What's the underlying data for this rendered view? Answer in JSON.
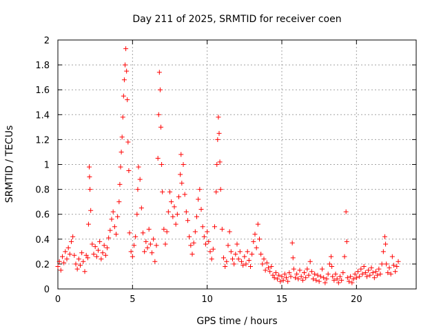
{
  "chart_data": {
    "type": "scatter",
    "title": "Day 211 of 2025, SRMTID for receiver coen",
    "xlabel": "GPS time / hours",
    "ylabel": "SRMTID / TECUs",
    "xlim": [
      0,
      24
    ],
    "ylim": [
      0,
      2
    ],
    "xticks": [
      0,
      5,
      10,
      15,
      20
    ],
    "xtick_labels": [
      "0",
      "5",
      "10",
      "15",
      "20"
    ],
    "yticks": [
      0,
      0.2,
      0.4,
      0.6,
      0.8,
      1,
      1.2,
      1.4,
      1.6,
      1.8,
      2
    ],
    "ytick_labels": [
      "0",
      "0.2",
      "0.4",
      "0.6",
      "0.8",
      "1",
      "1.2",
      "1.4",
      "1.6",
      "1.8",
      "2"
    ],
    "grid": true,
    "marker": "+",
    "color": "#ff0000",
    "series": [
      {
        "name": "SRMTID",
        "points": [
          [
            0.0,
            0.18
          ],
          [
            0.1,
            0.22
          ],
          [
            0.2,
            0.15
          ],
          [
            0.3,
            0.26
          ],
          [
            0.4,
            0.21
          ],
          [
            0.5,
            0.3
          ],
          [
            0.6,
            0.24
          ],
          [
            0.7,
            0.33
          ],
          [
            0.8,
            0.28
          ],
          [
            0.9,
            0.38
          ],
          [
            1.0,
            0.42
          ],
          [
            1.1,
            0.27
          ],
          [
            1.2,
            0.2
          ],
          [
            1.3,
            0.16
          ],
          [
            1.4,
            0.24
          ],
          [
            1.5,
            0.19
          ],
          [
            1.6,
            0.29
          ],
          [
            1.7,
            0.22
          ],
          [
            1.8,
            0.14
          ],
          [
            1.9,
            0.27
          ],
          [
            2.0,
            0.25
          ],
          [
            2.05,
            0.52
          ],
          [
            2.1,
            0.98
          ],
          [
            2.12,
            0.9
          ],
          [
            2.15,
            0.8
          ],
          [
            2.2,
            0.63
          ],
          [
            2.3,
            0.36
          ],
          [
            2.4,
            0.28
          ],
          [
            2.5,
            0.34
          ],
          [
            2.6,
            0.26
          ],
          [
            2.7,
            0.31
          ],
          [
            2.8,
            0.38
          ],
          [
            2.9,
            0.24
          ],
          [
            3.0,
            0.29
          ],
          [
            3.1,
            0.35
          ],
          [
            3.2,
            0.27
          ],
          [
            3.3,
            0.33
          ],
          [
            3.4,
            0.41
          ],
          [
            3.5,
            0.47
          ],
          [
            3.6,
            0.56
          ],
          [
            3.7,
            0.62
          ],
          [
            3.8,
            0.5
          ],
          [
            3.9,
            0.44
          ],
          [
            4.0,
            0.58
          ],
          [
            4.1,
            0.7
          ],
          [
            4.15,
            0.84
          ],
          [
            4.2,
            0.98
          ],
          [
            4.25,
            1.1
          ],
          [
            4.3,
            1.22
          ],
          [
            4.35,
            1.38
          ],
          [
            4.4,
            1.55
          ],
          [
            4.45,
            1.68
          ],
          [
            4.5,
            1.8
          ],
          [
            4.55,
            1.93
          ],
          [
            4.6,
            1.75
          ],
          [
            4.65,
            1.52
          ],
          [
            4.7,
            1.18
          ],
          [
            4.75,
            0.95
          ],
          [
            4.8,
            0.45
          ],
          [
            4.9,
            0.3
          ],
          [
            5.0,
            0.26
          ],
          [
            5.1,
            0.35
          ],
          [
            5.2,
            0.42
          ],
          [
            5.3,
            0.6
          ],
          [
            5.35,
            0.8
          ],
          [
            5.4,
            0.98
          ],
          [
            5.5,
            0.88
          ],
          [
            5.6,
            0.65
          ],
          [
            5.7,
            0.45
          ],
          [
            5.8,
            0.3
          ],
          [
            5.9,
            0.38
          ],
          [
            6.0,
            0.33
          ],
          [
            6.1,
            0.48
          ],
          [
            6.2,
            0.36
          ],
          [
            6.3,
            0.29
          ],
          [
            6.4,
            0.4
          ],
          [
            6.5,
            0.22
          ],
          [
            6.6,
            0.35
          ],
          [
            6.7,
            1.05
          ],
          [
            6.75,
            1.4
          ],
          [
            6.8,
            1.74
          ],
          [
            6.85,
            1.6
          ],
          [
            6.9,
            1.3
          ],
          [
            6.95,
            1.0
          ],
          [
            7.0,
            0.78
          ],
          [
            7.1,
            0.48
          ],
          [
            7.2,
            0.36
          ],
          [
            7.3,
            0.46
          ],
          [
            7.4,
            0.62
          ],
          [
            7.5,
            0.78
          ],
          [
            7.6,
            0.7
          ],
          [
            7.7,
            0.58
          ],
          [
            7.8,
            0.66
          ],
          [
            7.9,
            0.52
          ],
          [
            8.0,
            0.6
          ],
          [
            8.1,
            0.74
          ],
          [
            8.2,
            0.92
          ],
          [
            8.25,
            1.08
          ],
          [
            8.3,
            0.85
          ],
          [
            8.4,
            1.0
          ],
          [
            8.5,
            0.76
          ],
          [
            8.6,
            0.62
          ],
          [
            8.7,
            0.55
          ],
          [
            8.8,
            0.42
          ],
          [
            8.9,
            0.35
          ],
          [
            9.0,
            0.28
          ],
          [
            9.1,
            0.37
          ],
          [
            9.2,
            0.46
          ],
          [
            9.3,
            0.58
          ],
          [
            9.4,
            0.72
          ],
          [
            9.5,
            0.8
          ],
          [
            9.6,
            0.64
          ],
          [
            9.7,
            0.5
          ],
          [
            9.8,
            0.42
          ],
          [
            9.9,
            0.36
          ],
          [
            10.0,
            0.46
          ],
          [
            10.1,
            0.38
          ],
          [
            10.2,
            0.3
          ],
          [
            10.3,
            0.24
          ],
          [
            10.4,
            0.32
          ],
          [
            10.5,
            0.5
          ],
          [
            10.6,
            0.78
          ],
          [
            10.65,
            1.0
          ],
          [
            10.7,
            1.2
          ],
          [
            10.75,
            1.38
          ],
          [
            10.8,
            1.25
          ],
          [
            10.85,
            1.02
          ],
          [
            10.9,
            0.8
          ],
          [
            11.0,
            0.48
          ],
          [
            11.1,
            0.25
          ],
          [
            11.2,
            0.18
          ],
          [
            11.3,
            0.22
          ],
          [
            11.4,
            0.35
          ],
          [
            11.5,
            0.46
          ],
          [
            11.6,
            0.3
          ],
          [
            11.7,
            0.24
          ],
          [
            11.8,
            0.2
          ],
          [
            11.9,
            0.28
          ],
          [
            12.0,
            0.36
          ],
          [
            12.1,
            0.24
          ],
          [
            12.2,
            0.3
          ],
          [
            12.3,
            0.22
          ],
          [
            12.4,
            0.19
          ],
          [
            12.5,
            0.26
          ],
          [
            12.6,
            0.2
          ],
          [
            12.7,
            0.3
          ],
          [
            12.8,
            0.23
          ],
          [
            12.9,
            0.18
          ],
          [
            13.0,
            0.28
          ],
          [
            13.1,
            0.38
          ],
          [
            13.2,
            0.44
          ],
          [
            13.3,
            0.33
          ],
          [
            13.4,
            0.52
          ],
          [
            13.5,
            0.4
          ],
          [
            13.6,
            0.28
          ],
          [
            13.7,
            0.2
          ],
          [
            13.8,
            0.24
          ],
          [
            13.9,
            0.15
          ],
          [
            14.0,
            0.21
          ],
          [
            14.1,
            0.17
          ],
          [
            14.2,
            0.14
          ],
          [
            14.3,
            0.18
          ],
          [
            14.4,
            0.11
          ],
          [
            14.5,
            0.09
          ],
          [
            14.6,
            0.13
          ],
          [
            14.7,
            0.08
          ],
          [
            14.8,
            0.11
          ],
          [
            14.9,
            0.06
          ],
          [
            15.0,
            0.1
          ],
          [
            15.1,
            0.07
          ],
          [
            15.2,
            0.12
          ],
          [
            15.3,
            0.09
          ],
          [
            15.4,
            0.06
          ],
          [
            15.5,
            0.13
          ],
          [
            15.6,
            0.1
          ],
          [
            15.7,
            0.37
          ],
          [
            15.75,
            0.25
          ],
          [
            15.8,
            0.16
          ],
          [
            15.9,
            0.09
          ],
          [
            16.0,
            0.12
          ],
          [
            16.1,
            0.08
          ],
          [
            16.2,
            0.15
          ],
          [
            16.3,
            0.1
          ],
          [
            16.4,
            0.07
          ],
          [
            16.5,
            0.13
          ],
          [
            16.6,
            0.09
          ],
          [
            16.7,
            0.16
          ],
          [
            16.8,
            0.11
          ],
          [
            16.9,
            0.22
          ],
          [
            17.0,
            0.14
          ],
          [
            17.1,
            0.08
          ],
          [
            17.2,
            0.12
          ],
          [
            17.3,
            0.07
          ],
          [
            17.4,
            0.11
          ],
          [
            17.5,
            0.06
          ],
          [
            17.6,
            0.1
          ],
          [
            17.7,
            0.16
          ],
          [
            17.8,
            0.09
          ],
          [
            17.9,
            0.05
          ],
          [
            18.0,
            0.08
          ],
          [
            18.1,
            0.12
          ],
          [
            18.2,
            0.2
          ],
          [
            18.3,
            0.26
          ],
          [
            18.35,
            0.18
          ],
          [
            18.4,
            0.1
          ],
          [
            18.5,
            0.07
          ],
          [
            18.6,
            0.12
          ],
          [
            18.7,
            0.08
          ],
          [
            18.8,
            0.05
          ],
          [
            18.9,
            0.1
          ],
          [
            19.0,
            0.07
          ],
          [
            19.1,
            0.13
          ],
          [
            19.2,
            0.26
          ],
          [
            19.3,
            0.62
          ],
          [
            19.35,
            0.38
          ],
          [
            19.4,
            0.09
          ],
          [
            19.5,
            0.06
          ],
          [
            19.6,
            0.1
          ],
          [
            19.7,
            0.05
          ],
          [
            19.8,
            0.08
          ],
          [
            19.9,
            0.12
          ],
          [
            20.0,
            0.09
          ],
          [
            20.1,
            0.14
          ],
          [
            20.2,
            0.1
          ],
          [
            20.3,
            0.16
          ],
          [
            20.4,
            0.12
          ],
          [
            20.5,
            0.18
          ],
          [
            20.6,
            0.13
          ],
          [
            20.7,
            0.1
          ],
          [
            20.8,
            0.15
          ],
          [
            20.9,
            0.11
          ],
          [
            21.0,
            0.17
          ],
          [
            21.1,
            0.13
          ],
          [
            21.2,
            0.09
          ],
          [
            21.3,
            0.14
          ],
          [
            21.4,
            0.11
          ],
          [
            21.5,
            0.16
          ],
          [
            21.6,
            0.12
          ],
          [
            21.7,
            0.2
          ],
          [
            21.8,
            0.3
          ],
          [
            21.9,
            0.42
          ],
          [
            21.95,
            0.36
          ],
          [
            22.0,
            0.2
          ],
          [
            22.1,
            0.13
          ],
          [
            22.2,
            0.17
          ],
          [
            22.3,
            0.12
          ],
          [
            22.4,
            0.26
          ],
          [
            22.5,
            0.19
          ],
          [
            22.6,
            0.14
          ],
          [
            22.7,
            0.18
          ],
          [
            22.8,
            0.22
          ]
        ]
      }
    ]
  }
}
